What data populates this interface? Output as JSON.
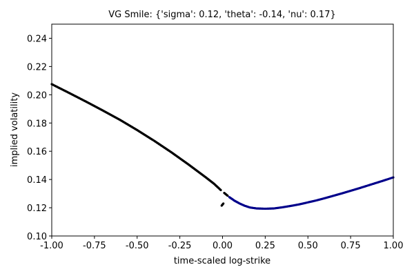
{
  "chart_data": {
    "type": "scatter",
    "title": "VG Smile: {'sigma': 0.12, 'theta': -0.14, 'nu': 0.17}",
    "xlabel": "time-scaled log-strike",
    "ylabel": "implied volatility",
    "xlim": [
      -1.0,
      1.0
    ],
    "ylim": [
      0.1,
      0.25
    ],
    "x_ticks": [
      "-1.00",
      "-0.75",
      "-0.50",
      "-0.25",
      "0.00",
      "0.25",
      "0.50",
      "0.75",
      "1.00"
    ],
    "y_ticks": [
      "0.10",
      "0.12",
      "0.14",
      "0.16",
      "0.18",
      "0.20",
      "0.22",
      "0.24"
    ],
    "grid": false,
    "colors": {
      "left_branch": "#000000",
      "right_branch": "#00008b"
    },
    "series": [
      {
        "color": "#000000",
        "x": [
          -1.0,
          -0.9,
          -0.8,
          -0.7,
          -0.6,
          -0.5,
          -0.4,
          -0.3,
          -0.2,
          -0.1,
          -0.05,
          -0.01
        ],
        "y": [
          0.2075,
          0.2014,
          0.1952,
          0.1888,
          0.1822,
          0.175,
          0.1674,
          0.1593,
          0.1507,
          0.1417,
          0.137,
          0.1325
        ]
      },
      {
        "color": "#000000",
        "x": [
          -0.005,
          0.005
        ],
        "y": [
          0.1215,
          0.123
        ]
      },
      {
        "color": "#000000",
        "x": [
          0.01,
          0.02,
          0.03
        ],
        "y": [
          0.1305,
          0.1295,
          0.1285
        ]
      },
      {
        "color": "#00008b",
        "x": [
          0.04,
          0.07,
          0.1,
          0.13,
          0.16,
          0.2,
          0.25,
          0.3,
          0.35,
          0.4,
          0.45,
          0.5,
          0.55,
          0.6,
          0.65,
          0.7,
          0.75,
          0.8,
          0.85,
          0.9,
          0.95,
          1.0
        ],
        "y": [
          0.1275,
          0.125,
          0.123,
          0.1214,
          0.1202,
          0.1195,
          0.1193,
          0.1195,
          0.1203,
          0.1213,
          0.1224,
          0.1238,
          0.1252,
          0.1268,
          0.1285,
          0.1302,
          0.132,
          0.1338,
          0.1357,
          0.1376,
          0.1395,
          0.1415
        ]
      }
    ]
  }
}
